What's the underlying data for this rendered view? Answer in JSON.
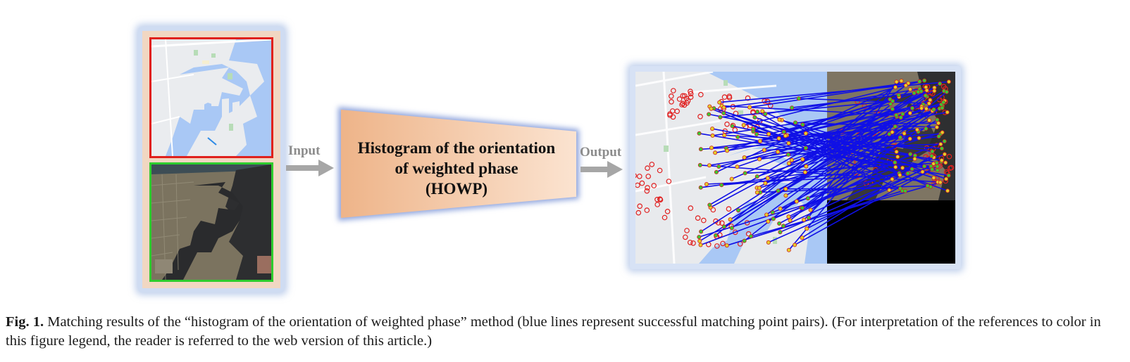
{
  "figure": {
    "input_arrow_label": "Input",
    "output_arrow_label": "Output",
    "method": {
      "line1": "Histogram of the orientation",
      "line2": "of weighted phase",
      "line3": "(HOWP)"
    },
    "colors": {
      "reference_border": "#e0211d",
      "sensed_border": "#2ecc2e",
      "match_lines": "#1010e6",
      "keypoint_circles": "#e02020",
      "method_box_fill": "#f4c9a6",
      "arrow": "#a6a6a6"
    },
    "icons": [
      "map-image",
      "satellite-image",
      "right-arrow-icon",
      "matching-result-image"
    ]
  },
  "caption": {
    "label": "Fig. 1.",
    "text": "Matching results of the “histogram of the orientation of weighted phase” method (blue lines represent successful matching point pairs). (For interpretation of the references to color in this figure legend, the reader is referred to the web version of this article.)"
  }
}
